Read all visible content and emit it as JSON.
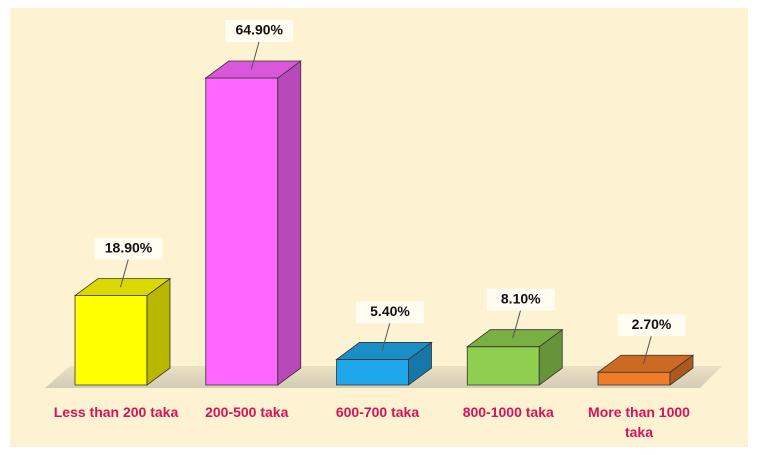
{
  "chart_data": {
    "type": "bar3d",
    "categories": [
      "Less than 200 taka",
      "200-500 taka",
      "600-700 taka",
      "800-1000 taka",
      "More than 1000 taka"
    ],
    "values": [
      18.9,
      64.9,
      5.4,
      8.1,
      2.7
    ],
    "value_labels": [
      "18.90%",
      "64.90%",
      "5.40%",
      "8.10%",
      "2.70%"
    ],
    "colors": [
      "#ffff00",
      "#ff66ff",
      "#1ea7ea",
      "#8fce4f",
      "#f07b28"
    ]
  }
}
